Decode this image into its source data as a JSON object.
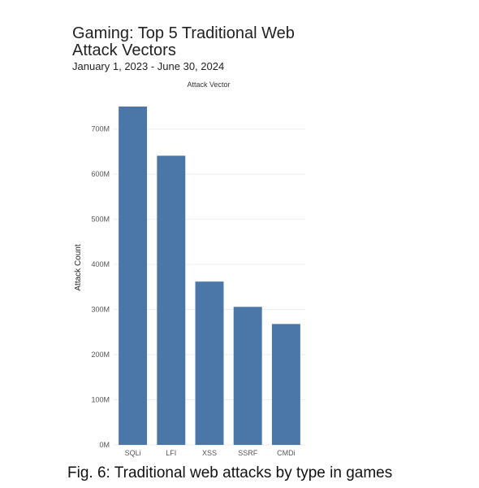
{
  "title": "Gaming: Top 5 Traditional Web Attack Vectors",
  "subtitle": "January 1, 2023 - June 30, 2024",
  "caption": "Fig. 6: Traditional web attacks by type in games",
  "chart_data": {
    "type": "bar",
    "title": "Gaming: Top 5 Traditional Web Attack Vectors",
    "subtitle": "January 1, 2023 - June 30, 2024",
    "legend_title": "Attack Vector",
    "xlabel": "",
    "ylabel": "Attack Count",
    "categories": [
      "SQLi",
      "LFI",
      "XSS",
      "SSRF",
      "CMDi"
    ],
    "values": [
      750000000,
      641000000,
      362000000,
      306000000,
      268000000
    ],
    "ylim": [
      0,
      750000000
    ],
    "yticks": [
      0,
      100000000,
      200000000,
      300000000,
      400000000,
      500000000,
      600000000,
      700000000
    ],
    "ytick_labels": [
      "0M",
      "100M",
      "200M",
      "300M",
      "400M",
      "500M",
      "600M",
      "700M"
    ],
    "bar_color": "#4a76a8",
    "grid": true
  }
}
